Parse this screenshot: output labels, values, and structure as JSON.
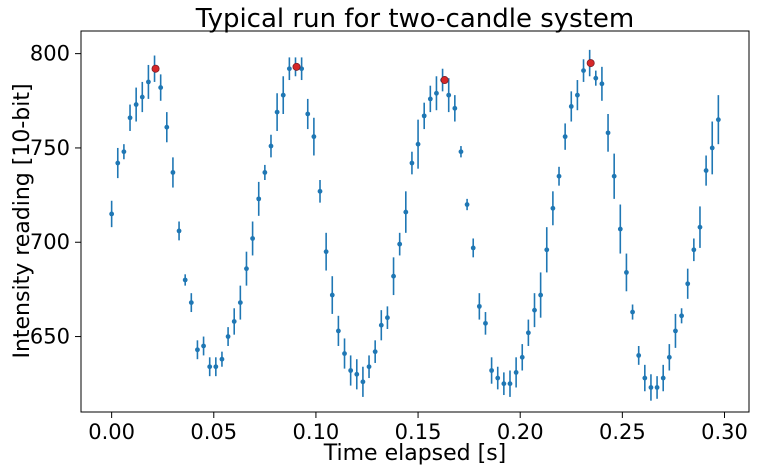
{
  "chart_data": {
    "type": "scatter",
    "title": "Typical run for two-candle system",
    "xlabel": "Time elapsed [s]",
    "ylabel": "Intensity reading [10-bit]",
    "xlim": [
      -0.015,
      0.312
    ],
    "ylim": [
      610,
      812
    ],
    "xticks": [
      0.0,
      0.05,
      0.1,
      0.15,
      0.2,
      0.25,
      0.3
    ],
    "xtick_labels": [
      "0.00",
      "0.05",
      "0.10",
      "0.15",
      "0.20",
      "0.25",
      "0.30"
    ],
    "yticks": [
      650,
      700,
      750,
      800
    ],
    "ytick_labels": [
      "650",
      "700",
      "750",
      "800"
    ],
    "grid": false,
    "colors": {
      "series": "#1f77b4",
      "peaks": "#d62728"
    },
    "series": [
      {
        "x": [
          0.0,
          0.003,
          0.006,
          0.009,
          0.012,
          0.015,
          0.018,
          0.021,
          0.024,
          0.027,
          0.03,
          0.033,
          0.036,
          0.039,
          0.042,
          0.045,
          0.048,
          0.051,
          0.054,
          0.057,
          0.06,
          0.063,
          0.066,
          0.069,
          0.072,
          0.075,
          0.078,
          0.081,
          0.084,
          0.087,
          0.09,
          0.093,
          0.096,
          0.099,
          0.102,
          0.105,
          0.108,
          0.111,
          0.114,
          0.117,
          0.12,
          0.123,
          0.126,
          0.129,
          0.132,
          0.135,
          0.138,
          0.141,
          0.144,
          0.147,
          0.15,
          0.153,
          0.156,
          0.159,
          0.162,
          0.165,
          0.168,
          0.171,
          0.174,
          0.177,
          0.18,
          0.183,
          0.186,
          0.189,
          0.192,
          0.195,
          0.198,
          0.201,
          0.204,
          0.207,
          0.21,
          0.213,
          0.216,
          0.219,
          0.222,
          0.225,
          0.228,
          0.231,
          0.234,
          0.237,
          0.24,
          0.243,
          0.246,
          0.249,
          0.252,
          0.255,
          0.258,
          0.261,
          0.264,
          0.267,
          0.27,
          0.273,
          0.276,
          0.279,
          0.282,
          0.285,
          0.288,
          0.291,
          0.294,
          0.297
        ],
        "y": [
          715,
          742,
          748,
          766,
          773,
          777,
          785,
          792,
          782,
          761,
          737,
          706,
          680,
          668,
          643,
          645,
          634,
          634,
          638,
          650,
          658,
          668,
          686,
          702,
          723,
          737,
          751,
          769,
          778,
          792,
          793,
          792,
          768,
          756,
          727,
          695,
          672,
          653,
          641,
          632,
          630,
          626,
          634,
          642,
          656,
          660,
          682,
          699,
          716,
          742,
          752,
          767,
          776,
          779,
          786,
          778,
          771,
          748,
          720,
          697,
          666,
          657,
          632,
          628,
          625,
          625,
          631,
          639,
          652,
          664,
          672,
          696,
          718,
          735,
          756,
          772,
          778,
          791,
          795,
          787,
          784,
          758,
          735,
          707,
          684,
          663,
          640,
          628,
          623,
          623,
          628,
          639,
          653,
          661,
          678,
          696,
          708,
          738,
          750,
          765
        ],
        "yerr": [
          7,
          8,
          4,
          7,
          9,
          8,
          9,
          7,
          7,
          8,
          8,
          5,
          3,
          5,
          5,
          5,
          5,
          5,
          4,
          5,
          7,
          9,
          9,
          9,
          9,
          4,
          6,
          10,
          10,
          6,
          5,
          6,
          8,
          10,
          6,
          10,
          10,
          8,
          8,
          8,
          8,
          8,
          6,
          6,
          8,
          6,
          10,
          6,
          11,
          6,
          13,
          7,
          7,
          9,
          6,
          9,
          7,
          3,
          3,
          5,
          7,
          6,
          7,
          6,
          6,
          7,
          8,
          7,
          7,
          9,
          12,
          12,
          9,
          5,
          7,
          8,
          8,
          6,
          7,
          4,
          9,
          10,
          12,
          13,
          10,
          4,
          5,
          7,
          7,
          6,
          7,
          7,
          9,
          4,
          8,
          6,
          11,
          8,
          14,
          13
        ]
      },
      {
        "x": [
          0.0215,
          0.0905,
          0.163,
          0.2345
        ],
        "y": [
          792,
          793,
          786,
          795
        ]
      }
    ]
  }
}
